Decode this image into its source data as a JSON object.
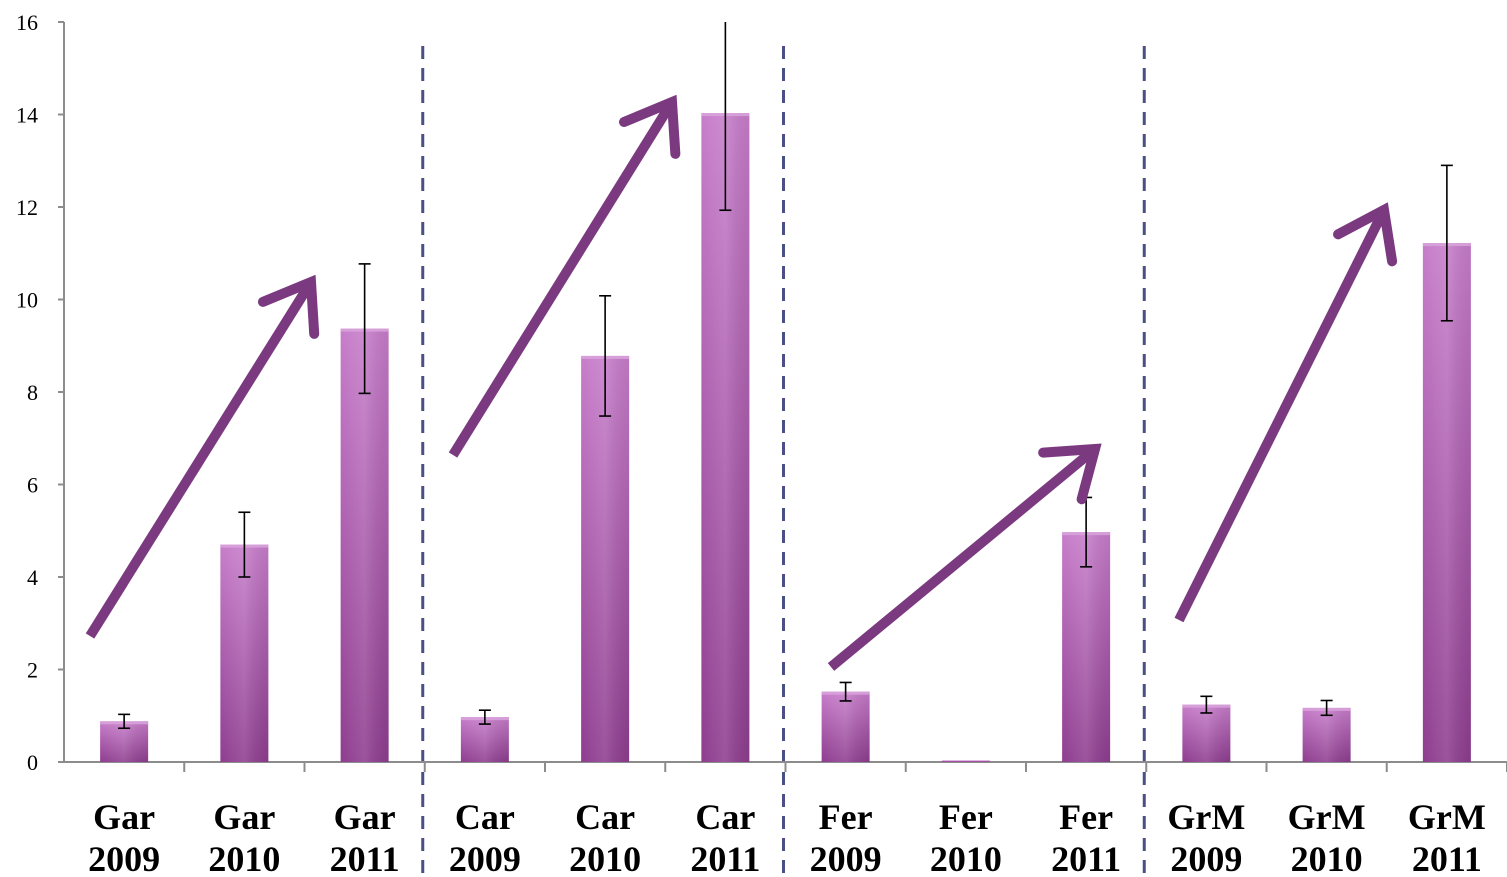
{
  "chart_data": {
    "type": "bar",
    "categories": [
      [
        "Gar",
        "2009"
      ],
      [
        "Gar",
        "2010"
      ],
      [
        "Gar",
        "2011"
      ],
      [
        "Car",
        "2009"
      ],
      [
        "Car",
        "2010"
      ],
      [
        "Car",
        "2011"
      ],
      [
        "Fer",
        "2009"
      ],
      [
        "Fer",
        "2010"
      ],
      [
        "Fer",
        "2011"
      ],
      [
        "GrM",
        "2009"
      ],
      [
        "GrM",
        "2010"
      ],
      [
        "GrM",
        "2011"
      ]
    ],
    "values": [
      0.88,
      4.7,
      9.37,
      0.97,
      8.78,
      14.03,
      1.52,
      0,
      4.97,
      1.24,
      1.17,
      11.22
    ],
    "errors": [
      0.15,
      0.7,
      1.4,
      0.15,
      1.3,
      2.1,
      0.2,
      0,
      0.75,
      0.18,
      0.16,
      1.68
    ],
    "ylim": [
      0,
      16
    ],
    "yticks": [
      0,
      2,
      4,
      6,
      8,
      10,
      12,
      14,
      16
    ],
    "title": "",
    "xlabel": "",
    "ylabel": "",
    "grid": false,
    "colors": {
      "bar_light": "#c77dca",
      "bar_dark": "#8e3d8f",
      "arrow": "#7b3a80",
      "separator": "#4a4f86",
      "axis": "#8c8c8c"
    },
    "annotations": {
      "group_separators": "dashed vertical lines between the four groups",
      "trend_arrows": [
        {
          "from": [
            0,
            0.88
          ],
          "to": [
            2,
            9.37
          ]
        },
        {
          "from": [
            3,
            0.97
          ],
          "to": [
            5,
            14.03
          ]
        },
        {
          "from": [
            6,
            1.52
          ],
          "to": [
            8,
            4.97
          ]
        },
        {
          "from": [
            9,
            1.24
          ],
          "to": [
            11,
            11.22
          ]
        }
      ]
    }
  }
}
